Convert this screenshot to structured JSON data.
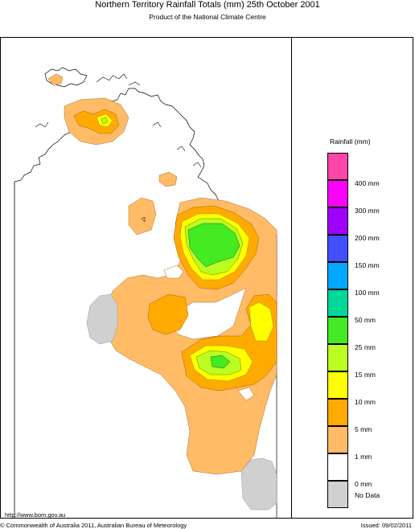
{
  "header": {
    "title": "Northern Territory Rainfall Totals (mm) 25th October 2001",
    "subtitle": "Product of the National Climate Centre"
  },
  "legend": {
    "title": "Rainfall (mm)",
    "items": [
      {
        "label": "400 mm",
        "color": "#ff44aa"
      },
      {
        "label": "300 mm",
        "color": "#ff00ff"
      },
      {
        "label": "200 mm",
        "color": "#a000ff"
      },
      {
        "label": "150 mm",
        "color": "#4050ff"
      },
      {
        "label": "100 mm",
        "color": "#00a8ff"
      },
      {
        "label": "50 mm",
        "color": "#00d89a"
      },
      {
        "label": "25 mm",
        "color": "#44ea22"
      },
      {
        "label": "15 mm",
        "color": "#bbff22"
      },
      {
        "label": "10 mm",
        "color": "#ffff00"
      },
      {
        "label": "5 mm",
        "color": "#ffaa00"
      },
      {
        "label": "1 mm",
        "color": "#ffbb66"
      },
      {
        "label": "0 mm",
        "color": "#ffffff"
      },
      {
        "label": "No Data",
        "color": "#d0d0d0"
      }
    ]
  },
  "footer": {
    "url": "http://www.bom.gov.au",
    "copyright": "© Commonwealth of Australia 2011, Australian Bureau of Meteorology",
    "issued": "Issued: 09/02/2011"
  }
}
